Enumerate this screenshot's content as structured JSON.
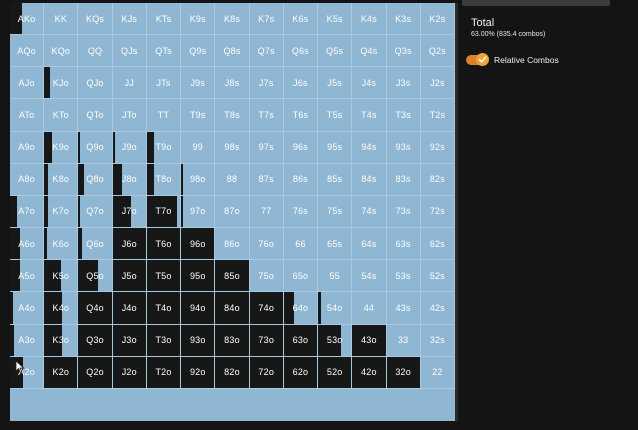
{
  "grid": {
    "rows": [
      [
        {
          "label": "AKo",
          "fill": 0.35
        },
        {
          "label": "KK",
          "fill": 0.0
        },
        {
          "label": "KQs",
          "fill": 0
        },
        {
          "label": "KJs",
          "fill": 0
        },
        {
          "label": "KTs",
          "fill": 0
        },
        {
          "label": "K9s",
          "fill": 0
        },
        {
          "label": "K8s",
          "fill": 0
        },
        {
          "label": "K7s",
          "fill": 0
        },
        {
          "label": "K6s",
          "fill": 0
        },
        {
          "label": "K5s",
          "fill": 0
        },
        {
          "label": "K4s",
          "fill": 0
        },
        {
          "label": "K3s",
          "fill": 0
        },
        {
          "label": "K2s",
          "fill": 0
        }
      ],
      [
        {
          "label": "AQo",
          "fill": 0
        },
        {
          "label": "KQo",
          "fill": 0
        },
        {
          "label": "QQ",
          "fill": 0
        },
        {
          "label": "QJs",
          "fill": 0
        },
        {
          "label": "QTs",
          "fill": 0
        },
        {
          "label": "Q9s",
          "fill": 0
        },
        {
          "label": "Q8s",
          "fill": 0
        },
        {
          "label": "Q7s",
          "fill": 0
        },
        {
          "label": "Q6s",
          "fill": 0
        },
        {
          "label": "Q5s",
          "fill": 0
        },
        {
          "label": "Q4s",
          "fill": 0
        },
        {
          "label": "Q3s",
          "fill": 0
        },
        {
          "label": "Q2s",
          "fill": 0
        }
      ],
      [
        {
          "label": "AJo",
          "fill": 0
        },
        {
          "label": "KJo",
          "fill": 0.18
        },
        {
          "label": "QJo",
          "fill": 0
        },
        {
          "label": "JJ",
          "fill": 0
        },
        {
          "label": "JTs",
          "fill": 0
        },
        {
          "label": "J9s",
          "fill": 0
        },
        {
          "label": "J8s",
          "fill": 0
        },
        {
          "label": "J7s",
          "fill": 0
        },
        {
          "label": "J6s",
          "fill": 0
        },
        {
          "label": "J5s",
          "fill": 0
        },
        {
          "label": "J4s",
          "fill": 0
        },
        {
          "label": "J3s",
          "fill": 0
        },
        {
          "label": "J2s",
          "fill": 0
        }
      ],
      [
        {
          "label": "ATo",
          "fill": 0
        },
        {
          "label": "KTo",
          "fill": 0
        },
        {
          "label": "QTo",
          "fill": 0
        },
        {
          "label": "JTo",
          "fill": 0
        },
        {
          "label": "TT",
          "fill": 0
        },
        {
          "label": "T9s",
          "fill": 0
        },
        {
          "label": "T8s",
          "fill": 0
        },
        {
          "label": "T7s",
          "fill": 0
        },
        {
          "label": "T6s",
          "fill": 0
        },
        {
          "label": "T5s",
          "fill": 0
        },
        {
          "label": "T4s",
          "fill": 0
        },
        {
          "label": "T3s",
          "fill": 0
        },
        {
          "label": "T2s",
          "fill": 0
        }
      ],
      [
        {
          "label": "A9o",
          "fill": 0
        },
        {
          "label": "K9o",
          "fill": 0.22
        },
        {
          "label": "Q9o",
          "fill": 0.05
        },
        {
          "label": "J9o",
          "fill": 0.08
        },
        {
          "label": "T9o",
          "fill": 0.2
        },
        {
          "label": "99",
          "fill": 0
        },
        {
          "label": "98s",
          "fill": 0
        },
        {
          "label": "97s",
          "fill": 0
        },
        {
          "label": "96s",
          "fill": 0
        },
        {
          "label": "95s",
          "fill": 0
        },
        {
          "label": "94s",
          "fill": 0
        },
        {
          "label": "93s",
          "fill": 0
        },
        {
          "label": "92s",
          "fill": 0
        }
      ],
      [
        {
          "label": "A8o",
          "fill": 0
        },
        {
          "label": "K8o",
          "fill": 0.12
        },
        {
          "label": "Q8o",
          "fill": 0.18
        },
        {
          "label": "J8o",
          "fill": 0.28
        },
        {
          "label": "T8o",
          "fill": 0.2
        },
        {
          "label": "98o",
          "fill": 0.05
        },
        {
          "label": "88",
          "fill": 0
        },
        {
          "label": "87s",
          "fill": 0
        },
        {
          "label": "86s",
          "fill": 0
        },
        {
          "label": "85s",
          "fill": 0
        },
        {
          "label": "84s",
          "fill": 0
        },
        {
          "label": "83s",
          "fill": 0
        },
        {
          "label": "82s",
          "fill": 0
        }
      ],
      [
        {
          "label": "A7o",
          "fill": 0.2
        },
        {
          "label": "K7o",
          "fill": 0.1
        },
        {
          "label": "Q7o",
          "fill": 0.05
        },
        {
          "label": "J7o",
          "fill": 0.55
        },
        {
          "label": "T7o",
          "fill": 0.9
        },
        {
          "label": "97o",
          "fill": 0.05
        },
        {
          "label": "87o",
          "fill": 0
        },
        {
          "label": "77",
          "fill": 0
        },
        {
          "label": "76s",
          "fill": 0
        },
        {
          "label": "75s",
          "fill": 0
        },
        {
          "label": "74s",
          "fill": 0
        },
        {
          "label": "73s",
          "fill": 0
        },
        {
          "label": "72s",
          "fill": 0
        }
      ],
      [
        {
          "label": "A6o",
          "fill": 0.3
        },
        {
          "label": "K6o",
          "fill": 0.08
        },
        {
          "label": "Q6o",
          "fill": 0.1
        },
        {
          "label": "J6o",
          "fill": 1
        },
        {
          "label": "T6o",
          "fill": 1
        },
        {
          "label": "96o",
          "fill": 1
        },
        {
          "label": "86o",
          "fill": 0
        },
        {
          "label": "76o",
          "fill": 0
        },
        {
          "label": "66",
          "fill": 0
        },
        {
          "label": "65s",
          "fill": 0
        },
        {
          "label": "64s",
          "fill": 0
        },
        {
          "label": "63s",
          "fill": 0
        },
        {
          "label": "62s",
          "fill": 0
        }
      ],
      [
        {
          "label": "A5o",
          "fill": 0.3
        },
        {
          "label": "K5o",
          "fill": 0.5
        },
        {
          "label": "Q5o",
          "fill": 0.6
        },
        {
          "label": "J5o",
          "fill": 1
        },
        {
          "label": "T5o",
          "fill": 1
        },
        {
          "label": "95o",
          "fill": 1
        },
        {
          "label": "85o",
          "fill": 1
        },
        {
          "label": "75o",
          "fill": 0
        },
        {
          "label": "65o",
          "fill": 0
        },
        {
          "label": "55",
          "fill": 0
        },
        {
          "label": "54s",
          "fill": 0
        },
        {
          "label": "53s",
          "fill": 0
        },
        {
          "label": "52s",
          "fill": 0
        }
      ],
      [
        {
          "label": "A4o",
          "fill": 0.1
        },
        {
          "label": "K4o",
          "fill": 0.55
        },
        {
          "label": "Q4o",
          "fill": 1
        },
        {
          "label": "J4o",
          "fill": 1
        },
        {
          "label": "T4o",
          "fill": 1
        },
        {
          "label": "94o",
          "fill": 1
        },
        {
          "label": "84o",
          "fill": 1
        },
        {
          "label": "74o",
          "fill": 1
        },
        {
          "label": "64o",
          "fill": 0.3
        },
        {
          "label": "54o",
          "fill": 0.1
        },
        {
          "label": "44",
          "fill": 0
        },
        {
          "label": "43s",
          "fill": 0
        },
        {
          "label": "42s",
          "fill": 0
        }
      ],
      [
        {
          "label": "A3o",
          "fill": 0.12
        },
        {
          "label": "K3o",
          "fill": 0.55
        },
        {
          "label": "Q3o",
          "fill": 1
        },
        {
          "label": "J3o",
          "fill": 1
        },
        {
          "label": "T3o",
          "fill": 1
        },
        {
          "label": "93o",
          "fill": 1
        },
        {
          "label": "83o",
          "fill": 1
        },
        {
          "label": "73o",
          "fill": 1
        },
        {
          "label": "63o",
          "fill": 1
        },
        {
          "label": "53o",
          "fill": 0.7
        },
        {
          "label": "43o",
          "fill": 1
        },
        {
          "label": "33",
          "fill": 0
        },
        {
          "label": "32s",
          "fill": 0
        }
      ],
      [
        {
          "label": "A2o",
          "fill": 0.4
        },
        {
          "label": "K2o",
          "fill": 1
        },
        {
          "label": "Q2o",
          "fill": 1
        },
        {
          "label": "J2o",
          "fill": 1
        },
        {
          "label": "T2o",
          "fill": 1
        },
        {
          "label": "92o",
          "fill": 1
        },
        {
          "label": "82o",
          "fill": 1
        },
        {
          "label": "72o",
          "fill": 1
        },
        {
          "label": "62o",
          "fill": 1
        },
        {
          "label": "52o",
          "fill": 1
        },
        {
          "label": "42o",
          "fill": 1
        },
        {
          "label": "32o",
          "fill": 1
        },
        {
          "label": "22",
          "fill": 0
        }
      ]
    ],
    "colors": {
      "cell": "#8fb6d3",
      "fold": "#171717",
      "label": "#ffffff"
    }
  },
  "side": {
    "total_title": "Total",
    "total_sub": "63.00% (835.4 combos)",
    "toggle": {
      "label": "Relative Combos",
      "on": true,
      "color": "#d9822b"
    }
  },
  "icons": {
    "cursor": "mouse-pointer-icon",
    "check": "check-icon"
  }
}
